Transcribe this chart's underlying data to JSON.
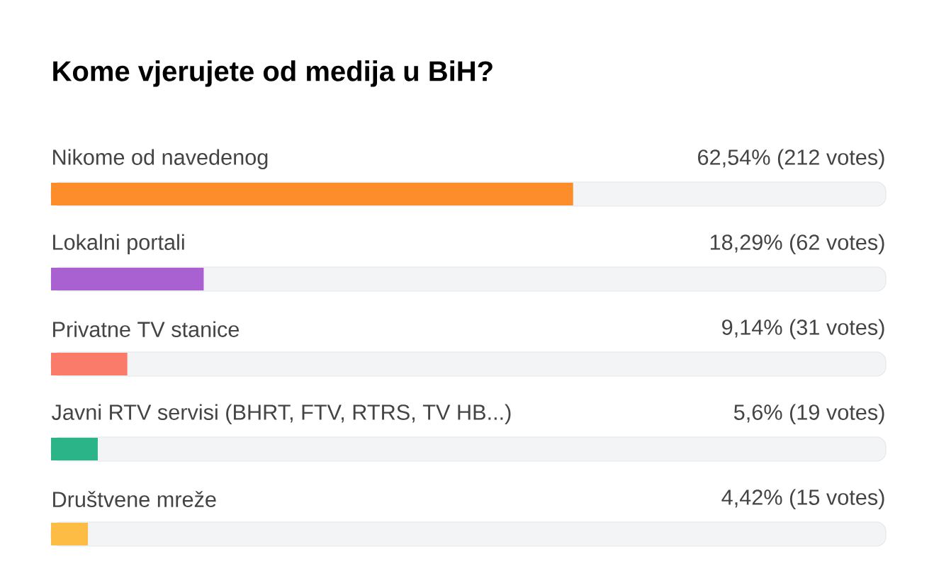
{
  "chart_data": {
    "type": "bar",
    "orientation": "horizontal",
    "title": "Kome vjerujete od medija u BiH?",
    "categories": [
      "Nikome od navedenog",
      "Lokalni portali",
      "Privatne TV stanice",
      "Javni RTV servisi (BHRT, FTV, RTRS, TV HB...)",
      "Društvene mreže"
    ],
    "values": [
      62.54,
      18.29,
      9.14,
      5.6,
      4.42
    ],
    "colors": [
      "#fd8c2a",
      "#a960d0",
      "#fb7b6b",
      "#2cb489",
      "#fdbd45"
    ],
    "value_labels": [
      "62,54% (212 votes)",
      "18,29% (62 votes)",
      "9,14% (31 votes)",
      "5,6% (19 votes)",
      "4,42% (15 votes)"
    ],
    "xlim": [
      0,
      100
    ]
  }
}
